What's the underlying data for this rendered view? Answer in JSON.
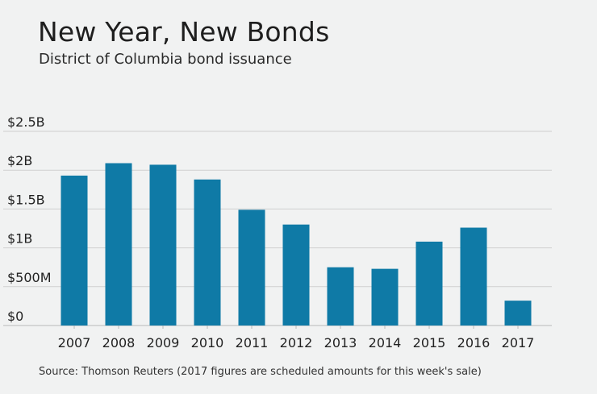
{
  "chart_data": {
    "type": "bar",
    "title": "New Year, New Bonds",
    "subtitle": "District of Columbia bond issuance",
    "categories": [
      "2007",
      "2008",
      "2009",
      "2010",
      "2011",
      "2012",
      "2013",
      "2014",
      "2015",
      "2016",
      "2017"
    ],
    "values": [
      1.93,
      2.09,
      2.07,
      1.88,
      1.49,
      1.3,
      0.75,
      0.73,
      1.08,
      1.26,
      0.32
    ],
    "value_unit": "billions of dollars",
    "ylim": [
      0,
      2.5
    ],
    "yticks": [
      {
        "value": 2.5,
        "label": "$2.5B"
      },
      {
        "value": 2.0,
        "label": "$2B"
      },
      {
        "value": 1.5,
        "label": "$1.5B"
      },
      {
        "value": 1.0,
        "label": "$1B"
      },
      {
        "value": 0.5,
        "label": "$500M"
      },
      {
        "value": 0.0,
        "label": "$0"
      }
    ],
    "bar_color": "#0f7aa6",
    "grid": true,
    "source": "Source: Thomson Reuters (2017 figures are scheduled amounts for this week's sale)"
  }
}
